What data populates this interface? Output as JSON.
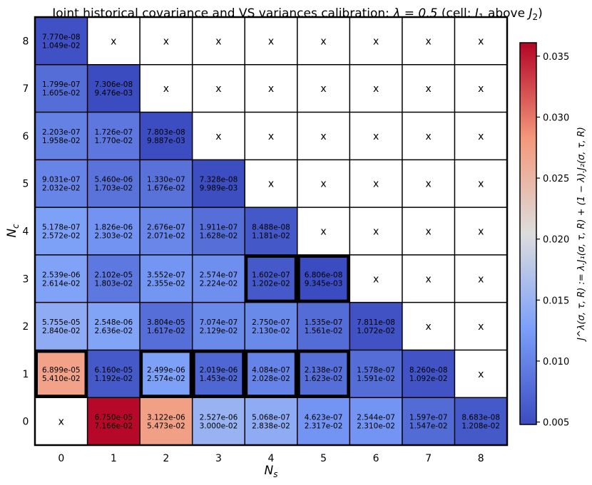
{
  "chart_data": {
    "type": "heatmap",
    "title_prefix": "Joint historical covariance and VS variances calibration: ",
    "title_lambda": "λ = 0.5",
    "title_cell_prefix": " (cell: ",
    "title_j1": "J",
    "title_j1_sub": "1",
    "title_mid": " above ",
    "title_j2": "J",
    "title_j2_sub": "2",
    "title_suffix": ")",
    "xlabel": "N",
    "xlabel_sub": "s",
    "ylabel": "N",
    "ylabel_sub": "c",
    "colorbar_label": "J^λ(σ, τ, R) := λ.J₁(σ, τ, R) + (1 − λ).J₂(σ, τ, R)",
    "x_categories": [
      "0",
      "1",
      "2",
      "3",
      "4",
      "5",
      "6",
      "7",
      "8"
    ],
    "y_categories": [
      "0",
      "1",
      "2",
      "3",
      "4",
      "5",
      "6",
      "7",
      "8"
    ],
    "colorbar_ticks": [
      "0.005",
      "0.010",
      "0.015",
      "0.020",
      "0.025",
      "0.030",
      "0.035"
    ],
    "colorbar_range": [
      0.0048,
      0.0361
    ],
    "empty_marker": "x",
    "colors": {
      "low": "#3b4cc0",
      "mid": "#dddddd",
      "high": "#b40426",
      "empty": "#ffffff",
      "grid": "#000000"
    },
    "highlighted_cells": [
      [
        0,
        1
      ],
      [
        2,
        1
      ],
      [
        3,
        1
      ],
      [
        4,
        1
      ],
      [
        5,
        1
      ],
      [
        4,
        3
      ],
      [
        5,
        3
      ]
    ],
    "cells": [
      {
        "x": 0,
        "y": 0,
        "j1": null,
        "j2": null,
        "value": null
      },
      {
        "x": 1,
        "y": 0,
        "j1": "6.750e-05",
        "j2": "7.166e-02",
        "value": 0.0359
      },
      {
        "x": 2,
        "y": 0,
        "j1": "3.122e-06",
        "j2": "5.473e-02",
        "value": 0.0274
      },
      {
        "x": 3,
        "y": 0,
        "j1": "2.527e-06",
        "j2": "3.000e-02",
        "value": 0.015
      },
      {
        "x": 4,
        "y": 0,
        "j1": "5.068e-07",
        "j2": "2.838e-02",
        "value": 0.0142
      },
      {
        "x": 5,
        "y": 0,
        "j1": "4.623e-07",
        "j2": "2.317e-02",
        "value": 0.0116
      },
      {
        "x": 6,
        "y": 0,
        "j1": "2.544e-07",
        "j2": "2.310e-02",
        "value": 0.0116
      },
      {
        "x": 7,
        "y": 0,
        "j1": "1.597e-07",
        "j2": "1.547e-02",
        "value": 0.0077
      },
      {
        "x": 8,
        "y": 0,
        "j1": "8.683e-08",
        "j2": "1.208e-02",
        "value": 0.006
      },
      {
        "x": 0,
        "y": 1,
        "j1": "6.899e-05",
        "j2": "5.410e-02",
        "value": 0.0271
      },
      {
        "x": 1,
        "y": 1,
        "j1": "6.160e-05",
        "j2": "1.192e-02",
        "value": 0.006
      },
      {
        "x": 2,
        "y": 1,
        "j1": "2.499e-06",
        "j2": "2.574e-02",
        "value": 0.0129
      },
      {
        "x": 3,
        "y": 1,
        "j1": "2.019e-06",
        "j2": "1.453e-02",
        "value": 0.0073
      },
      {
        "x": 4,
        "y": 1,
        "j1": "4.084e-07",
        "j2": "2.028e-02",
        "value": 0.0101
      },
      {
        "x": 5,
        "y": 1,
        "j1": "2.138e-07",
        "j2": "1.623e-02",
        "value": 0.0081
      },
      {
        "x": 6,
        "y": 1,
        "j1": "1.578e-07",
        "j2": "1.591e-02",
        "value": 0.008
      },
      {
        "x": 7,
        "y": 1,
        "j1": "8.260e-08",
        "j2": "1.092e-02",
        "value": 0.0055
      },
      {
        "x": 8,
        "y": 1,
        "j1": null,
        "j2": null,
        "value": null
      },
      {
        "x": 0,
        "y": 2,
        "j1": "5.755e-05",
        "j2": "2.840e-02",
        "value": 0.0142
      },
      {
        "x": 1,
        "y": 2,
        "j1": "2.548e-06",
        "j2": "2.636e-02",
        "value": 0.0132
      },
      {
        "x": 2,
        "y": 2,
        "j1": "3.804e-05",
        "j2": "1.617e-02",
        "value": 0.0081
      },
      {
        "x": 3,
        "y": 2,
        "j1": "7.074e-07",
        "j2": "2.129e-02",
        "value": 0.0106
      },
      {
        "x": 4,
        "y": 2,
        "j1": "2.750e-07",
        "j2": "2.130e-02",
        "value": 0.0106
      },
      {
        "x": 5,
        "y": 2,
        "j1": "1.535e-07",
        "j2": "1.561e-02",
        "value": 0.0078
      },
      {
        "x": 6,
        "y": 2,
        "j1": "7.811e-08",
        "j2": "1.072e-02",
        "value": 0.0054
      },
      {
        "x": 7,
        "y": 2,
        "j1": null,
        "j2": null,
        "value": null
      },
      {
        "x": 8,
        "y": 2,
        "j1": null,
        "j2": null,
        "value": null
      },
      {
        "x": 0,
        "y": 3,
        "j1": "2.539e-06",
        "j2": "2.614e-02",
        "value": 0.0131
      },
      {
        "x": 1,
        "y": 3,
        "j1": "2.102e-05",
        "j2": "1.803e-02",
        "value": 0.009
      },
      {
        "x": 2,
        "y": 3,
        "j1": "3.552e-07",
        "j2": "2.355e-02",
        "value": 0.0118
      },
      {
        "x": 3,
        "y": 3,
        "j1": "2.574e-07",
        "j2": "2.224e-02",
        "value": 0.0111
      },
      {
        "x": 4,
        "y": 3,
        "j1": "1.602e-07",
        "j2": "1.202e-02",
        "value": 0.006
      },
      {
        "x": 5,
        "y": 3,
        "j1": "6.806e-08",
        "j2": "9.345e-03",
        "value": 0.0047
      },
      {
        "x": 6,
        "y": 3,
        "j1": null,
        "j2": null,
        "value": null
      },
      {
        "x": 7,
        "y": 3,
        "j1": null,
        "j2": null,
        "value": null
      },
      {
        "x": 8,
        "y": 3,
        "j1": null,
        "j2": null,
        "value": null
      },
      {
        "x": 0,
        "y": 4,
        "j1": "5.178e-07",
        "j2": "2.572e-02",
        "value": 0.0129
      },
      {
        "x": 1,
        "y": 4,
        "j1": "1.826e-06",
        "j2": "2.303e-02",
        "value": 0.0115
      },
      {
        "x": 2,
        "y": 4,
        "j1": "2.676e-07",
        "j2": "2.071e-02",
        "value": 0.0104
      },
      {
        "x": 3,
        "y": 4,
        "j1": "1.911e-07",
        "j2": "1.628e-02",
        "value": 0.0081
      },
      {
        "x": 4,
        "y": 4,
        "j1": "8.488e-08",
        "j2": "1.181e-02",
        "value": 0.0059
      },
      {
        "x": 5,
        "y": 4,
        "j1": null,
        "j2": null,
        "value": null
      },
      {
        "x": 6,
        "y": 4,
        "j1": null,
        "j2": null,
        "value": null
      },
      {
        "x": 7,
        "y": 4,
        "j1": null,
        "j2": null,
        "value": null
      },
      {
        "x": 8,
        "y": 4,
        "j1": null,
        "j2": null,
        "value": null
      },
      {
        "x": 0,
        "y": 5,
        "j1": "9.031e-07",
        "j2": "2.032e-02",
        "value": 0.0102
      },
      {
        "x": 1,
        "y": 5,
        "j1": "5.460e-06",
        "j2": "1.703e-02",
        "value": 0.0085
      },
      {
        "x": 2,
        "y": 5,
        "j1": "1.330e-07",
        "j2": "1.676e-02",
        "value": 0.0084
      },
      {
        "x": 3,
        "y": 5,
        "j1": "7.328e-08",
        "j2": "9.989e-03",
        "value": 0.005
      },
      {
        "x": 4,
        "y": 5,
        "j1": null,
        "j2": null,
        "value": null
      },
      {
        "x": 5,
        "y": 5,
        "j1": null,
        "j2": null,
        "value": null
      },
      {
        "x": 6,
        "y": 5,
        "j1": null,
        "j2": null,
        "value": null
      },
      {
        "x": 7,
        "y": 5,
        "j1": null,
        "j2": null,
        "value": null
      },
      {
        "x": 8,
        "y": 5,
        "j1": null,
        "j2": null,
        "value": null
      },
      {
        "x": 0,
        "y": 6,
        "j1": "2.203e-07",
        "j2": "1.958e-02",
        "value": 0.0098
      },
      {
        "x": 1,
        "y": 6,
        "j1": "1.726e-07",
        "j2": "1.770e-02",
        "value": 0.0089
      },
      {
        "x": 2,
        "y": 6,
        "j1": "7.803e-08",
        "j2": "9.887e-03",
        "value": 0.0049
      },
      {
        "x": 3,
        "y": 6,
        "j1": null,
        "j2": null,
        "value": null
      },
      {
        "x": 4,
        "y": 6,
        "j1": null,
        "j2": null,
        "value": null
      },
      {
        "x": 5,
        "y": 6,
        "j1": null,
        "j2": null,
        "value": null
      },
      {
        "x": 6,
        "y": 6,
        "j1": null,
        "j2": null,
        "value": null
      },
      {
        "x": 7,
        "y": 6,
        "j1": null,
        "j2": null,
        "value": null
      },
      {
        "x": 8,
        "y": 6,
        "j1": null,
        "j2": null,
        "value": null
      },
      {
        "x": 0,
        "y": 7,
        "j1": "1.799e-07",
        "j2": "1.605e-02",
        "value": 0.008
      },
      {
        "x": 1,
        "y": 7,
        "j1": "7.306e-08",
        "j2": "9.476e-03",
        "value": 0.0048
      },
      {
        "x": 2,
        "y": 7,
        "j1": null,
        "j2": null,
        "value": null
      },
      {
        "x": 3,
        "y": 7,
        "j1": null,
        "j2": null,
        "value": null
      },
      {
        "x": 4,
        "y": 7,
        "j1": null,
        "j2": null,
        "value": null
      },
      {
        "x": 5,
        "y": 7,
        "j1": null,
        "j2": null,
        "value": null
      },
      {
        "x": 6,
        "y": 7,
        "j1": null,
        "j2": null,
        "value": null
      },
      {
        "x": 7,
        "y": 7,
        "j1": null,
        "j2": null,
        "value": null
      },
      {
        "x": 8,
        "y": 7,
        "j1": null,
        "j2": null,
        "value": null
      },
      {
        "x": 0,
        "y": 8,
        "j1": "7.770e-08",
        "j2": "1.049e-02",
        "value": 0.0053
      },
      {
        "x": 1,
        "y": 8,
        "j1": null,
        "j2": null,
        "value": null
      },
      {
        "x": 2,
        "y": 8,
        "j1": null,
        "j2": null,
        "value": null
      },
      {
        "x": 3,
        "y": 8,
        "j1": null,
        "j2": null,
        "value": null
      },
      {
        "x": 4,
        "y": 8,
        "j1": null,
        "j2": null,
        "value": null
      },
      {
        "x": 5,
        "y": 8,
        "j1": null,
        "j2": null,
        "value": null
      },
      {
        "x": 6,
        "y": 8,
        "j1": null,
        "j2": null,
        "value": null
      },
      {
        "x": 7,
        "y": 8,
        "j1": null,
        "j2": null,
        "value": null
      },
      {
        "x": 8,
        "y": 8,
        "j1": null,
        "j2": null,
        "value": null
      }
    ]
  }
}
